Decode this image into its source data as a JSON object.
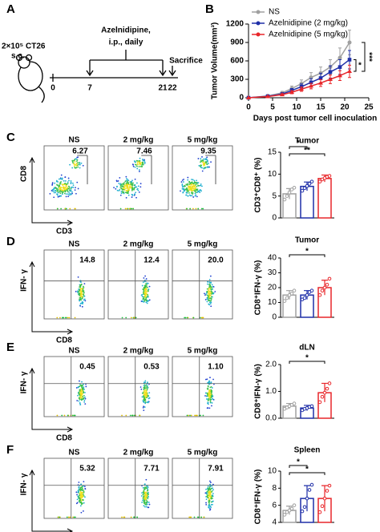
{
  "panel_labels": [
    "A",
    "B",
    "C",
    "D",
    "E",
    "F"
  ],
  "timeline": {
    "cells": "2×10⁵ CT26",
    "route": "s.c.",
    "drug": "Azelnidipine,",
    "schedule": "i.p., daily",
    "end": "Sacrifice",
    "days": [
      "0",
      "7",
      "21",
      "22"
    ]
  },
  "flow": [
    {
      "x_label": "CD3",
      "y_label": "CD8",
      "plots": [
        {
          "title": "NS",
          "value": "6.27"
        },
        {
          "title": "2 mg/kg",
          "value": "7.46"
        },
        {
          "title": "5 mg/kg",
          "value": "9.35"
        }
      ]
    },
    {
      "x_label": "CD8",
      "y_label": "IFN- γ",
      "plots": [
        {
          "title": "NS",
          "value": "14.8"
        },
        {
          "title": "2 mg/kg",
          "value": "12.4"
        },
        {
          "title": "5 mg/kg",
          "value": "20.0"
        }
      ]
    },
    {
      "x_label": "CD8",
      "y_label": "IFN- γ",
      "plots": [
        {
          "title": "NS",
          "value": "0.45"
        },
        {
          "title": "2 mg/kg",
          "value": "0.53"
        },
        {
          "title": "5 mg/kg",
          "value": "1.10"
        }
      ]
    },
    {
      "x_label": "CD8",
      "y_label": "IFN- γ",
      "plots": [
        {
          "title": "NS",
          "value": "5.32"
        },
        {
          "title": "2 mg/kg",
          "value": "7.71"
        },
        {
          "title": "5 mg/kg",
          "value": "7.91"
        }
      ]
    }
  ],
  "chart_data": [
    {
      "type": "line",
      "xlabel": "Days post tumor cell inoculation",
      "ylabel": "Tumor Volume(mm³)",
      "x": [
        0,
        4,
        7,
        9,
        11,
        13,
        15,
        17,
        19,
        21
      ],
      "series": [
        {
          "name": "NS",
          "color": "#a0a0a0",
          "values": [
            0,
            30,
            80,
            150,
            230,
            330,
            400,
            500,
            650,
            900
          ],
          "errors": [
            0,
            10,
            25,
            40,
            60,
            80,
            100,
            120,
            160,
            200
          ]
        },
        {
          "name": "Azelnidipine (2 mg/kg)",
          "color": "#1f2fa8",
          "values": [
            0,
            25,
            60,
            120,
            180,
            250,
            320,
            420,
            500,
            620
          ],
          "errors": [
            0,
            8,
            20,
            30,
            45,
            60,
            80,
            100,
            120,
            150
          ]
        },
        {
          "name": "Azelnidipine (5 mg/kg)",
          "color": "#e8262a",
          "values": [
            0,
            20,
            50,
            90,
            140,
            190,
            240,
            300,
            360,
            430
          ],
          "errors": [
            0,
            6,
            15,
            25,
            35,
            45,
            55,
            70,
            80,
            100
          ]
        }
      ],
      "xlim": [
        0,
        25
      ],
      "xticks": [
        0,
        5,
        10,
        15,
        20,
        25
      ],
      "ylim": [
        0,
        1200
      ],
      "yticks": [
        0,
        300,
        600,
        900,
        1200
      ],
      "annotations": [
        "*",
        "***"
      ]
    },
    {
      "type": "bar",
      "title": "Tumor",
      "ylabel": "CD3⁺CD8⁺ (%)",
      "categories": [
        null,
        null,
        null
      ],
      "values": [
        5.5,
        7.2,
        9.0
      ],
      "errors": [
        1.2,
        1.0,
        0.8
      ],
      "colors": [
        "#a0a0a0",
        "#1f2fa8",
        "#e8262a"
      ],
      "points": [
        [
          4.2,
          5.0,
          5.8,
          6.5,
          6.9
        ],
        [
          6.2,
          6.8,
          7.3,
          7.8,
          8.3
        ],
        [
          8.3,
          8.8,
          9.1,
          9.4,
          9.6
        ]
      ],
      "ylim": [
        0,
        15
      ],
      "yticks": [
        0,
        5,
        10,
        15
      ],
      "annotations": [
        "*",
        "**"
      ]
    },
    {
      "type": "bar",
      "title": "Tumor",
      "ylabel": "CD8⁺IFN-γ (%)",
      "categories": [
        null,
        null,
        null
      ],
      "values": [
        15,
        15,
        20
      ],
      "errors": [
        3,
        3,
        5
      ],
      "colors": [
        "#a0a0a0",
        "#1f2fa8",
        "#e8262a"
      ],
      "points": [
        [
          11,
          13,
          15,
          16,
          18
        ],
        [
          12,
          13,
          15,
          17,
          18
        ],
        [
          15,
          18,
          20,
          22,
          26
        ]
      ],
      "ylim": [
        0,
        40
      ],
      "yticks": [
        0,
        10,
        20,
        30,
        40
      ],
      "annotations": [
        "*"
      ]
    },
    {
      "type": "bar",
      "title": "dLN",
      "ylabel": "CD8⁺IFN-γ (%)",
      "categories": [
        null,
        null,
        null
      ],
      "values": [
        0.45,
        0.38,
        0.95
      ],
      "errors": [
        0.1,
        0.1,
        0.35
      ],
      "colors": [
        "#a0a0a0",
        "#1f2fa8",
        "#e8262a"
      ],
      "points": [
        [
          0.35,
          0.4,
          0.45,
          0.5,
          0.55
        ],
        [
          0.3,
          0.35,
          0.38,
          0.42,
          0.45
        ],
        [
          0.6,
          0.8,
          0.95,
          1.1,
          1.3
        ]
      ],
      "ylim": [
        0,
        2.0
      ],
      "yticks": [
        {
          "value": 0,
          "label": "0.0"
        },
        {
          "value": 1,
          "label": "1.0"
        },
        {
          "value": 2,
          "label": "2.0"
        }
      ],
      "annotations": [
        "*"
      ]
    },
    {
      "type": "bar",
      "title": "Spleen",
      "ylabel": "CD8⁺IFN-γ (%)",
      "categories": [
        null,
        null,
        null
      ],
      "values": [
        5.4,
        6.8,
        6.8
      ],
      "errors": [
        0.5,
        1.5,
        1.5
      ],
      "colors": [
        "#a0a0a0",
        "#1f2fa8",
        "#e8262a"
      ],
      "points": [
        [
          4.9,
          5.2,
          5.4,
          5.6,
          6.0
        ],
        [
          5.3,
          5.8,
          6.8,
          7.8,
          8.4
        ],
        [
          5.2,
          5.9,
          6.8,
          7.7,
          8.3
        ]
      ],
      "ylim": [
        4,
        10
      ],
      "yticks": [
        4,
        6,
        8,
        10
      ],
      "annotations": [
        "*",
        "*"
      ]
    }
  ]
}
